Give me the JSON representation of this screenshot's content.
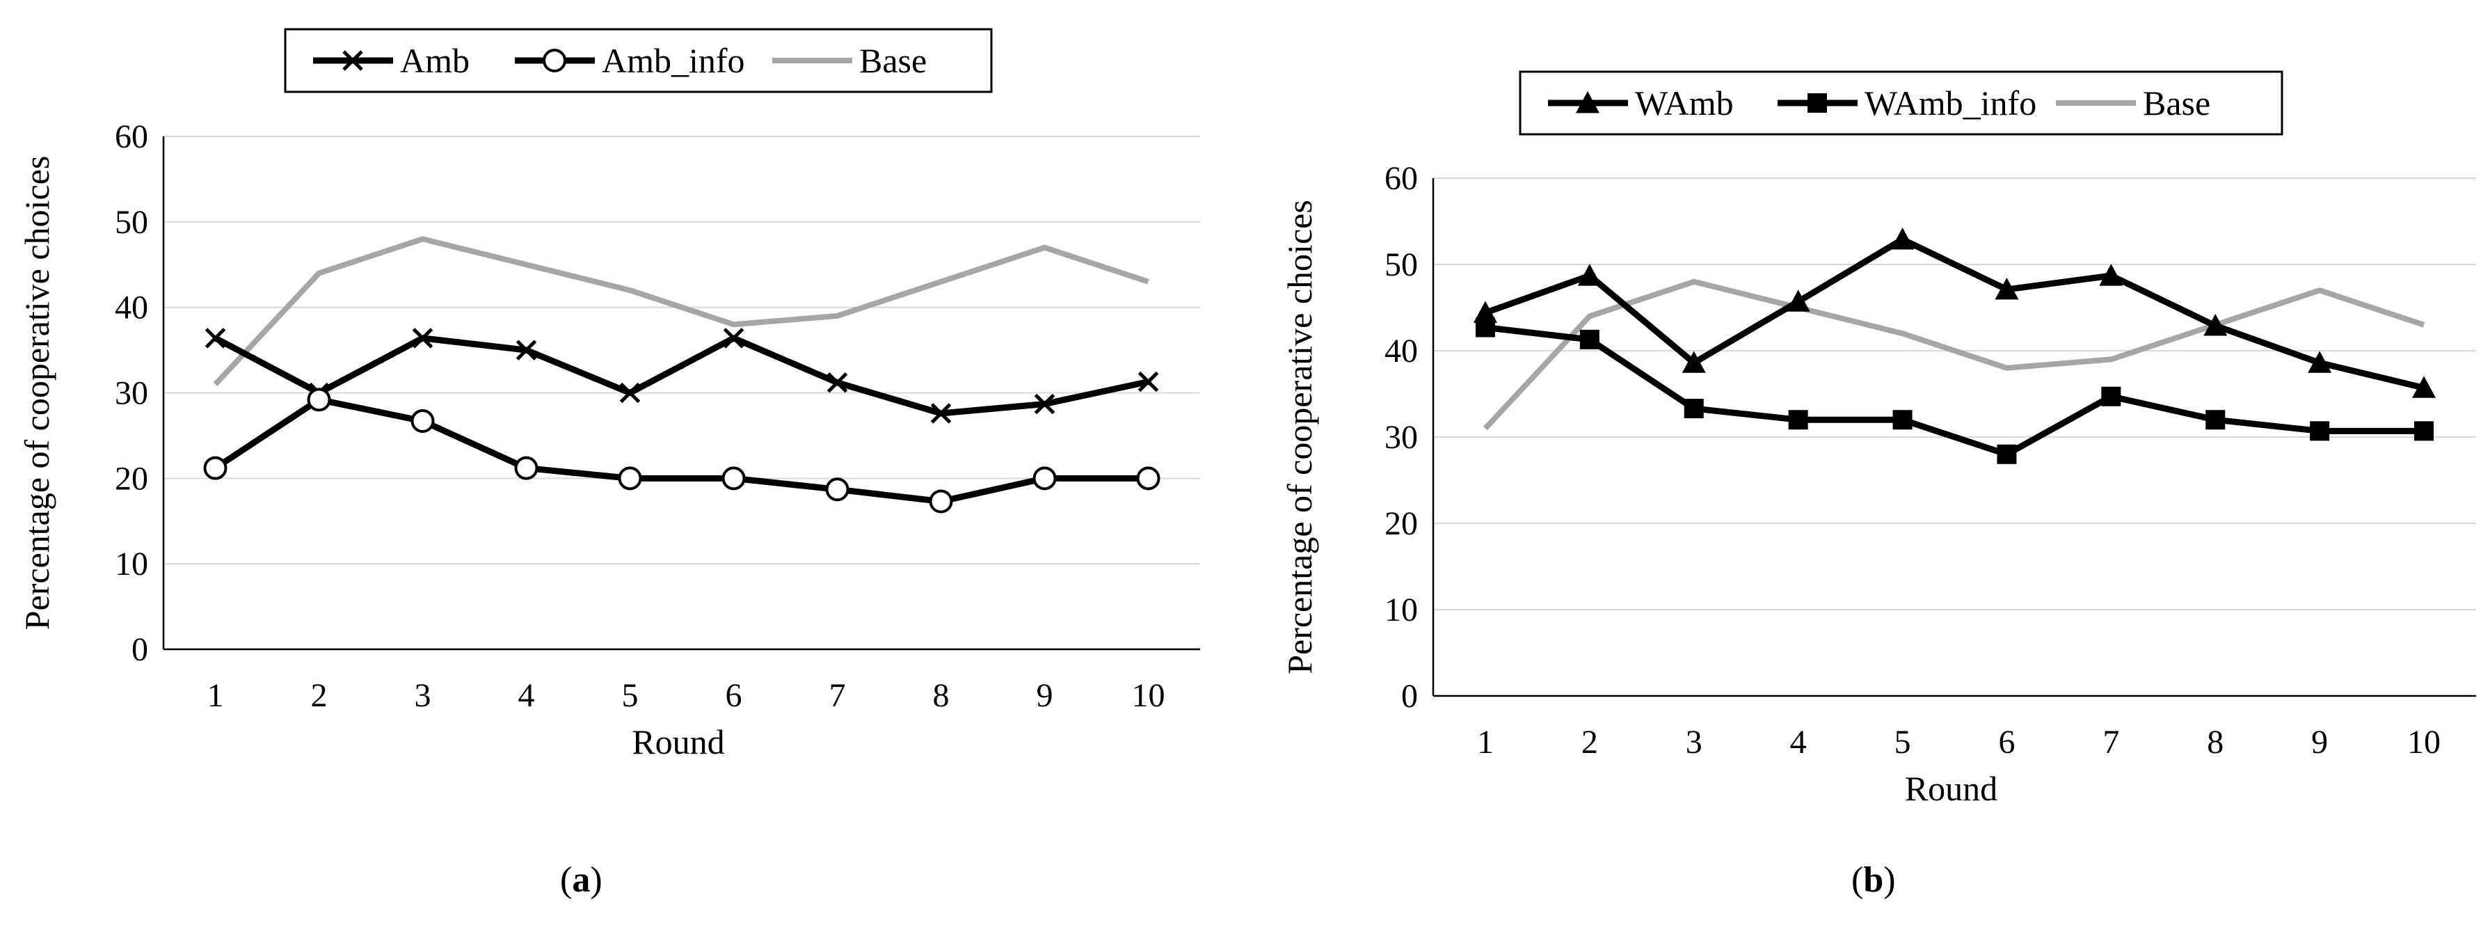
{
  "chart_data": [
    {
      "type": "line",
      "id": "a",
      "caption": "(a)",
      "caption_letter": "a",
      "xlabel": "Round",
      "ylabel": "Percentage of cooperative choices",
      "x": [
        1,
        2,
        3,
        4,
        5,
        6,
        7,
        8,
        9,
        10
      ],
      "x_tick_labels": [
        "1",
        "2",
        "3",
        "4",
        "5",
        "6",
        "7",
        "8",
        "9",
        "10"
      ],
      "ylim": [
        0,
        60
      ],
      "y_ticks": [
        0,
        10,
        20,
        30,
        40,
        50,
        60
      ],
      "y_tick_labels": [
        "0",
        "10",
        "20",
        "30",
        "40",
        "50",
        "60"
      ],
      "grid": "horizontal",
      "legend_position": "top",
      "series": [
        {
          "name": "Amb",
          "marker": "x",
          "color": "#000000",
          "values": [
            36.4,
            30,
            36.4,
            35,
            30,
            36.4,
            31.2,
            27.6,
            28.7,
            31.3
          ]
        },
        {
          "name": "Amb_info",
          "marker": "circle",
          "color": "#000000",
          "values": [
            21.2,
            29.2,
            26.7,
            21.2,
            20,
            20,
            18.7,
            17.3,
            20,
            20
          ]
        },
        {
          "name": "Base",
          "marker": "none",
          "color": "#a6a6a6",
          "values": [
            31,
            44,
            48,
            45,
            42,
            38,
            39,
            43,
            47,
            43
          ]
        }
      ]
    },
    {
      "type": "line",
      "id": "b",
      "caption": "(b)",
      "caption_letter": "b",
      "xlabel": "Round",
      "ylabel": "Percentage of cooperative choices",
      "x": [
        1,
        2,
        3,
        4,
        5,
        6,
        7,
        8,
        9,
        10
      ],
      "x_tick_labels": [
        "1",
        "2",
        "3",
        "4",
        "5",
        "6",
        "7",
        "8",
        "9",
        "10"
      ],
      "ylim": [
        0,
        60
      ],
      "y_ticks": [
        0,
        10,
        20,
        30,
        40,
        50,
        60
      ],
      "y_tick_labels": [
        "0",
        "10",
        "20",
        "30",
        "40",
        "50",
        "60"
      ],
      "grid": "horizontal",
      "legend_position": "top",
      "series": [
        {
          "name": "WAmb",
          "marker": "triangle",
          "color": "#000000",
          "values": [
            44.4,
            48.7,
            38.6,
            45.7,
            52.9,
            47.1,
            48.7,
            42.9,
            38.6,
            35.7
          ]
        },
        {
          "name": "WAmb_info",
          "marker": "square",
          "color": "#000000",
          "values": [
            42.7,
            41.3,
            33.3,
            32,
            32,
            28,
            34.7,
            32,
            30.7,
            30.7
          ]
        },
        {
          "name": "Base",
          "marker": "none",
          "color": "#a6a6a6",
          "values": [
            31,
            44,
            48,
            45,
            42,
            38,
            39,
            43,
            47,
            43
          ]
        }
      ]
    }
  ]
}
